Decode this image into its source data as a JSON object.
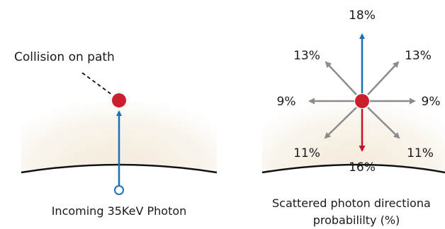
{
  "left_panel": {
    "collision_label": "Collision on path",
    "caption": "Incoming 35KeV Photon"
  },
  "right_panel": {
    "caption_line1": "Scattered photon directiona",
    "caption_line2": "probabililty (%)",
    "directions": [
      {
        "name": "up",
        "label": "18%",
        "arrow_color": "#1f6fb5"
      },
      {
        "name": "up-right",
        "label": "13%",
        "arrow_color": "#8c8c8c"
      },
      {
        "name": "right",
        "label": "9%",
        "arrow_color": "#8c8c8c"
      },
      {
        "name": "down-right",
        "label": "11%",
        "arrow_color": "#8c8c8c"
      },
      {
        "name": "down",
        "label": "16%",
        "arrow_color": "#c8102e"
      },
      {
        "name": "down-left",
        "label": "11%",
        "arrow_color": "#8c8c8c"
      },
      {
        "name": "left",
        "label": "9%",
        "arrow_color": "#8c8c8c"
      },
      {
        "name": "up-left",
        "label": "13%",
        "arrow_color": "#8c8c8c"
      }
    ]
  },
  "colors": {
    "collision_dot": "#cc1f2d",
    "incoming_photon": "#1f6fb5",
    "scatter_arrow": "#8c8c8c",
    "medium_glow": "#f3ead8",
    "medium_edge": "#111111"
  }
}
